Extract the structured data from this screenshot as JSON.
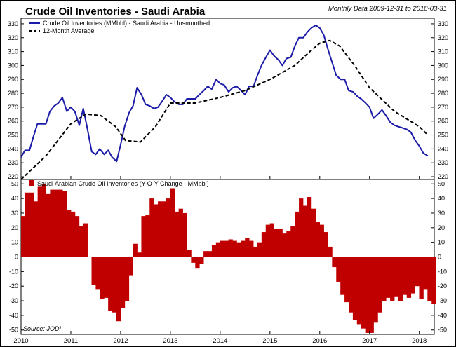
{
  "title": "Crude Oil Inventories - Saudi Arabia",
  "subtitle": "Monthly Data 2009-12-31 to 2018-03-31",
  "source": "Source:  JODI",
  "colors": {
    "inventory": "#1c1ca8",
    "average": "#000000",
    "change": "#c00000",
    "frame": "#000000"
  },
  "chart_data": [
    {
      "type": "line",
      "panel": "top",
      "title": "Crude Oil Inventories - Saudi Arabia",
      "ylim": [
        218,
        334
      ],
      "yticks": [
        220,
        230,
        240,
        250,
        260,
        270,
        280,
        290,
        300,
        310,
        320,
        330
      ],
      "xlim": [
        2010,
        2018.3
      ],
      "xticks": [
        2010,
        2011,
        2012,
        2013,
        2014,
        2015,
        2016,
        2017,
        2018
      ],
      "grid": false,
      "legend": {
        "position": "top-left",
        "entries": [
          "Crude Oil Inventories (MMbbl) - Saudi Arabia - Unsmoothed",
          "12-Month Average"
        ]
      },
      "series": [
        {
          "name": "Crude Oil Inventories (MMbbl) - Saudi Arabia - Unsmoothed",
          "style": "solid",
          "x": [
            2010.0,
            2010.08,
            2010.17,
            2010.25,
            2010.33,
            2010.42,
            2010.5,
            2010.58,
            2010.67,
            2010.75,
            2010.83,
            2010.92,
            2011.0,
            2011.08,
            2011.17,
            2011.25,
            2011.33,
            2011.42,
            2011.5,
            2011.58,
            2011.67,
            2011.75,
            2011.83,
            2011.92,
            2012.0,
            2012.08,
            2012.17,
            2012.25,
            2012.33,
            2012.42,
            2012.5,
            2012.58,
            2012.67,
            2012.75,
            2012.83,
            2012.92,
            2013.0,
            2013.08,
            2013.17,
            2013.25,
            2013.33,
            2013.42,
            2013.5,
            2013.58,
            2013.67,
            2013.75,
            2013.83,
            2013.92,
            2014.0,
            2014.08,
            2014.17,
            2014.25,
            2014.33,
            2014.42,
            2014.5,
            2014.58,
            2014.67,
            2014.75,
            2014.83,
            2014.92,
            2015.0,
            2015.08,
            2015.17,
            2015.25,
            2015.33,
            2015.42,
            2015.5,
            2015.58,
            2015.67,
            2015.75,
            2015.83,
            2015.92,
            2016.0,
            2016.08,
            2016.17,
            2016.25,
            2016.33,
            2016.42,
            2016.5,
            2016.58,
            2016.67,
            2016.75,
            2016.83,
            2016.92,
            2017.0,
            2017.08,
            2017.17,
            2017.25,
            2017.33,
            2017.42,
            2017.5,
            2017.58,
            2017.67,
            2017.75,
            2017.83,
            2017.92,
            2018.0,
            2018.08,
            2018.17
          ],
          "values": [
            234,
            239,
            239,
            249,
            258,
            258,
            258,
            267,
            271,
            273,
            277,
            267,
            270,
            267,
            257,
            269,
            255,
            238,
            236,
            240,
            236,
            239,
            234,
            231,
            243,
            256,
            266,
            271,
            284,
            279,
            272,
            271,
            269,
            270,
            274,
            279,
            277,
            274,
            272,
            272,
            276,
            276,
            276,
            279,
            282,
            285,
            283,
            290,
            287,
            286,
            281,
            284,
            285,
            282,
            279,
            285,
            285,
            293,
            300,
            306,
            311,
            307,
            304,
            300,
            305,
            306,
            314,
            320,
            320,
            324,
            327,
            329,
            327,
            322,
            311,
            302,
            293,
            290,
            290,
            282,
            281,
            278,
            276,
            273,
            270,
            262,
            265,
            268,
            264,
            259,
            257,
            256,
            255,
            254,
            252,
            246,
            242,
            237,
            235
          ],
          "color": "#1c1ca8"
        },
        {
          "name": "12-Month Average",
          "style": "dashed",
          "x": [
            2010.0,
            2010.5,
            2011.0,
            2011.3,
            2011.6,
            2011.9,
            2012.1,
            2012.4,
            2012.7,
            2013.0,
            2013.5,
            2014.0,
            2014.5,
            2015.0,
            2015.5,
            2015.8,
            2016.0,
            2016.2,
            2016.4,
            2016.7,
            2017.0,
            2017.5,
            2018.0,
            2018.17
          ],
          "values": [
            218,
            235,
            258,
            265,
            264,
            256,
            246,
            245,
            256,
            273,
            273,
            277,
            282,
            290,
            300,
            310,
            316,
            318,
            314,
            300,
            284,
            267,
            256,
            250
          ],
          "color": "#000000"
        }
      ]
    },
    {
      "type": "bar",
      "panel": "bottom",
      "title": "Saudi Arabian Crude Oil Inventories (Y-O-Y Change - MMbbl)",
      "ylim": [
        -53,
        53
      ],
      "yticks": [
        -50,
        -40,
        -30,
        -20,
        -10,
        0,
        10,
        20,
        30,
        40,
        50
      ],
      "xlim": [
        2010,
        2018.3
      ],
      "xticks": [
        2010,
        2011,
        2012,
        2013,
        2014,
        2015,
        2016,
        2017,
        2018
      ],
      "xlabels": [
        "2010",
        "2011",
        "2012",
        "2013",
        "2014",
        "2015",
        "2016",
        "2017",
        "2018"
      ],
      "grid": false,
      "legend": {
        "position": "top-left",
        "entries": [
          "Saudi Arabian Crude Oil Inventories (Y-O-Y Change - MMbbl)"
        ]
      },
      "series": [
        {
          "name": "Saudi Arabian Crude Oil Inventories (Y-O-Y Change - MMbbl)",
          "start": 2010.0,
          "step": 0.0833,
          "values": [
            28,
            44,
            44,
            38,
            48,
            50,
            43,
            46,
            46,
            46,
            45,
            32,
            31,
            28,
            21,
            23,
            0,
            -19,
            -22,
            -29,
            -28,
            -37,
            -38,
            -44,
            -35,
            -30,
            -13,
            9,
            3,
            28,
            29,
            40,
            36,
            38,
            38,
            40,
            47,
            31,
            33,
            30,
            5,
            -4,
            -8,
            -5,
            4,
            4,
            8,
            10,
            11,
            11,
            12,
            11,
            10,
            11,
            13,
            11,
            7,
            10,
            17,
            22,
            23,
            19,
            19,
            16,
            18,
            21,
            31,
            40,
            35,
            41,
            33,
            24,
            22,
            17,
            7,
            -7,
            -17,
            -26,
            -31,
            -38,
            -43,
            -46,
            -49,
            -52,
            -52,
            -45,
            -38,
            -30,
            -28,
            -30,
            -27,
            -30,
            -26,
            -28,
            -25,
            -20,
            -29,
            -22,
            -30,
            -32
          ]
        }
      ]
    }
  ]
}
